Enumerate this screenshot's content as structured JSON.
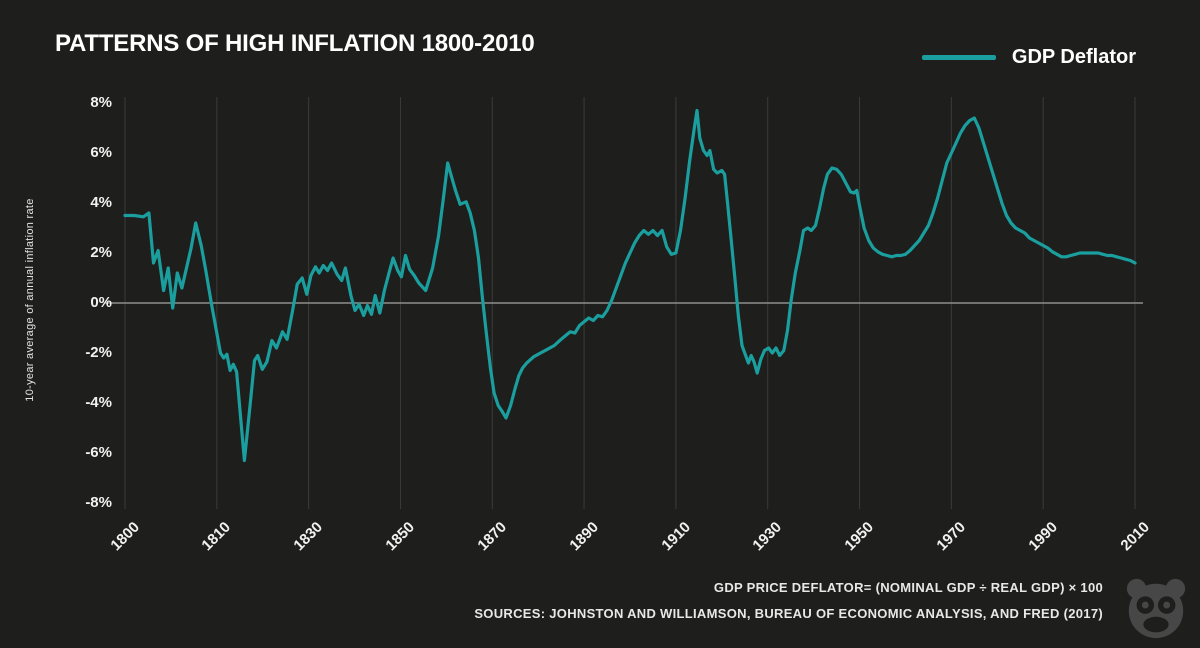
{
  "header": {
    "title": "PATTERNS OF HIGH INFLATION 1800-2010"
  },
  "legend": {
    "label": "GDP Deflator"
  },
  "footer": {
    "formula": "GDP PRICE DEFLATOR= (NOMINAL GDP ÷ REAL GDP) × 100",
    "sources": "SOURCES: JOHNSTON AND WILLIAMSON, BUREAU OF ECONOMIC ANALYSIS, AND FRED (2017)"
  },
  "colors": {
    "background": "#1e1e1d",
    "accent_teal": "#1b9e9e",
    "grid": "#3b3b3b",
    "zero_line": "#8d8d8d",
    "text": "#ffffff"
  },
  "chart_data": {
    "type": "line",
    "title": "PATTERNS OF HIGH INFLATION 1800-2010",
    "xlabel": "",
    "ylabel": "10-year average of annual inflation rate",
    "ylim": {
      "min": -8,
      "max": 8
    },
    "grid": true,
    "legend_position": "top-right",
    "y_ticks": [
      8,
      6,
      4,
      2,
      0,
      -2,
      -4,
      -6,
      -8
    ],
    "y_tick_labels": [
      "8%",
      "6%",
      "4%",
      "2%",
      "0%",
      "-2%",
      "-4%",
      "-6%",
      "-8%"
    ],
    "x_tick_years": [
      1800,
      1810,
      1830,
      1850,
      1870,
      1890,
      1910,
      1930,
      1950,
      1970,
      1990,
      2010
    ],
    "x_tick_labels": [
      "1800",
      "1810",
      "1830",
      "1850",
      "1870",
      "1890",
      "1910",
      "1930",
      "1950",
      "1970",
      "1990",
      "2010"
    ],
    "series": [
      {
        "name": "GDP Deflator",
        "color": "#1b9e9e",
        "points": [
          [
            1800,
            3.5
          ],
          [
            1801,
            3.5
          ],
          [
            1802,
            3.45
          ],
          [
            1802.6,
            3.6
          ],
          [
            1803.1,
            1.6
          ],
          [
            1803.6,
            2.1
          ],
          [
            1804.2,
            0.5
          ],
          [
            1804.7,
            1.4
          ],
          [
            1805.2,
            -0.2
          ],
          [
            1805.7,
            1.2
          ],
          [
            1806.2,
            0.6
          ],
          [
            1806.7,
            1.4
          ],
          [
            1807.2,
            2.2
          ],
          [
            1807.7,
            3.2
          ],
          [
            1808.3,
            2.3
          ],
          [
            1808.8,
            1.3
          ],
          [
            1809.4,
            0
          ],
          [
            1810,
            -1.2
          ],
          [
            1810.8,
            -2.0
          ],
          [
            1811.5,
            -2.2
          ],
          [
            1812.2,
            -2.05
          ],
          [
            1812.9,
            -2.7
          ],
          [
            1813.6,
            -2.45
          ],
          [
            1814.3,
            -2.75
          ],
          [
            1816,
            -6.3
          ],
          [
            1817.3,
            -4.0
          ],
          [
            1818.2,
            -2.3
          ],
          [
            1818.9,
            -2.1
          ],
          [
            1819.9,
            -2.65
          ],
          [
            1820.9,
            -2.35
          ],
          [
            1822,
            -1.5
          ],
          [
            1823,
            -1.8
          ],
          [
            1824.3,
            -1.15
          ],
          [
            1825.3,
            -1.45
          ],
          [
            1826.5,
            -0.3
          ],
          [
            1827.5,
            0.75
          ],
          [
            1828.6,
            1.0
          ],
          [
            1829.6,
            0.35
          ],
          [
            1830.5,
            1.1
          ],
          [
            1831.5,
            1.45
          ],
          [
            1832.3,
            1.2
          ],
          [
            1833.2,
            1.5
          ],
          [
            1834.1,
            1.3
          ],
          [
            1835,
            1.6
          ],
          [
            1836.2,
            1.15
          ],
          [
            1837.2,
            0.9
          ],
          [
            1838,
            1.4
          ],
          [
            1839.2,
            0.3
          ],
          [
            1840.1,
            -0.3
          ],
          [
            1841,
            -0.05
          ],
          [
            1842,
            -0.5
          ],
          [
            1842.8,
            -0.1
          ],
          [
            1843.7,
            -0.45
          ],
          [
            1844.5,
            0.3
          ],
          [
            1845.5,
            -0.4
          ],
          [
            1846.5,
            0.5
          ],
          [
            1847.5,
            1.2
          ],
          [
            1848.4,
            1.8
          ],
          [
            1849.4,
            1.3
          ],
          [
            1850.2,
            1.05
          ],
          [
            1851.1,
            1.9
          ],
          [
            1852,
            1.35
          ],
          [
            1853,
            1.1
          ],
          [
            1854,
            0.8
          ],
          [
            1855.5,
            0.5
          ],
          [
            1857,
            1.4
          ],
          [
            1858.3,
            2.7
          ],
          [
            1859.3,
            4.1
          ],
          [
            1860.3,
            5.6
          ],
          [
            1861.2,
            5.0
          ],
          [
            1862,
            4.5
          ],
          [
            1863,
            3.95
          ],
          [
            1864.3,
            4.05
          ],
          [
            1865.2,
            3.6
          ],
          [
            1866.1,
            2.9
          ],
          [
            1867,
            1.8
          ],
          [
            1867.8,
            0.3
          ],
          [
            1868.7,
            -1.2
          ],
          [
            1869.6,
            -2.6
          ],
          [
            1870.4,
            -3.6
          ],
          [
            1871.3,
            -4.1
          ],
          [
            1872.2,
            -4.35
          ],
          [
            1873,
            -4.6
          ],
          [
            1874,
            -4.1
          ],
          [
            1875,
            -3.4
          ],
          [
            1875.8,
            -2.9
          ],
          [
            1876.6,
            -2.6
          ],
          [
            1877.5,
            -2.4
          ],
          [
            1879,
            -2.15
          ],
          [
            1880.5,
            -2.0
          ],
          [
            1882,
            -1.85
          ],
          [
            1883.5,
            -1.7
          ],
          [
            1885,
            -1.45
          ],
          [
            1886,
            -1.3
          ],
          [
            1887,
            -1.15
          ],
          [
            1888,
            -1.2
          ],
          [
            1889,
            -0.9
          ],
          [
            1890,
            -0.75
          ],
          [
            1891,
            -0.6
          ],
          [
            1892,
            -0.7
          ],
          [
            1893,
            -0.5
          ],
          [
            1894,
            -0.55
          ],
          [
            1895,
            -0.3
          ],
          [
            1896,
            0.1
          ],
          [
            1897,
            0.6
          ],
          [
            1898,
            1.1
          ],
          [
            1899,
            1.6
          ],
          [
            1900,
            2.0
          ],
          [
            1901,
            2.4
          ],
          [
            1902,
            2.7
          ],
          [
            1903,
            2.9
          ],
          [
            1904,
            2.75
          ],
          [
            1905,
            2.9
          ],
          [
            1906,
            2.7
          ],
          [
            1907,
            2.9
          ],
          [
            1908,
            2.25
          ],
          [
            1909,
            1.95
          ],
          [
            1910,
            2.0
          ],
          [
            1911,
            2.9
          ],
          [
            1912,
            4.2
          ],
          [
            1913,
            5.7
          ],
          [
            1914,
            7.0
          ],
          [
            1914.6,
            7.7
          ],
          [
            1915.2,
            6.6
          ],
          [
            1916,
            6.1
          ],
          [
            1916.8,
            5.9
          ],
          [
            1917.4,
            6.1
          ],
          [
            1918.2,
            5.35
          ],
          [
            1919,
            5.2
          ],
          [
            1920,
            5.3
          ],
          [
            1920.6,
            5.15
          ],
          [
            1921.3,
            3.9
          ],
          [
            1922.1,
            2.4
          ],
          [
            1922.9,
            0.9
          ],
          [
            1923.6,
            -0.5
          ],
          [
            1924.4,
            -1.7
          ],
          [
            1925.1,
            -2.05
          ],
          [
            1925.8,
            -2.4
          ],
          [
            1926.4,
            -2.1
          ],
          [
            1927,
            -2.35
          ],
          [
            1927.7,
            -2.8
          ],
          [
            1928.5,
            -2.25
          ],
          [
            1929.3,
            -1.9
          ],
          [
            1930.2,
            -1.8
          ],
          [
            1931,
            -2.0
          ],
          [
            1931.8,
            -1.8
          ],
          [
            1932.6,
            -2.1
          ],
          [
            1933.5,
            -1.9
          ],
          [
            1934.3,
            -1.1
          ],
          [
            1935.1,
            0.1
          ],
          [
            1936,
            1.2
          ],
          [
            1937,
            2.1
          ],
          [
            1937.8,
            2.9
          ],
          [
            1938.7,
            3.0
          ],
          [
            1939.5,
            2.9
          ],
          [
            1940.4,
            3.1
          ],
          [
            1941.3,
            3.8
          ],
          [
            1942.2,
            4.6
          ],
          [
            1943,
            5.15
          ],
          [
            1944,
            5.4
          ],
          [
            1945,
            5.35
          ],
          [
            1946,
            5.15
          ],
          [
            1947,
            4.8
          ],
          [
            1948,
            4.45
          ],
          [
            1948.8,
            4.4
          ],
          [
            1949.4,
            4.5
          ],
          [
            1950,
            3.9
          ],
          [
            1951,
            3.0
          ],
          [
            1952,
            2.5
          ],
          [
            1953,
            2.2
          ],
          [
            1954,
            2.05
          ],
          [
            1955,
            1.95
          ],
          [
            1956,
            1.9
          ],
          [
            1957,
            1.85
          ],
          [
            1958,
            1.9
          ],
          [
            1959,
            1.9
          ],
          [
            1960,
            1.95
          ],
          [
            1961,
            2.1
          ],
          [
            1962,
            2.3
          ],
          [
            1963,
            2.5
          ],
          [
            1964,
            2.8
          ],
          [
            1965,
            3.1
          ],
          [
            1966,
            3.6
          ],
          [
            1967,
            4.2
          ],
          [
            1968,
            4.9
          ],
          [
            1969,
            5.6
          ],
          [
            1970,
            6.0
          ],
          [
            1971,
            6.4
          ],
          [
            1972,
            6.8
          ],
          [
            1973,
            7.1
          ],
          [
            1974,
            7.3
          ],
          [
            1975,
            7.4
          ],
          [
            1976,
            7.0
          ],
          [
            1977,
            6.4
          ],
          [
            1978,
            5.8
          ],
          [
            1979,
            5.2
          ],
          [
            1980,
            4.6
          ],
          [
            1981,
            4.0
          ],
          [
            1982,
            3.5
          ],
          [
            1983,
            3.2
          ],
          [
            1984,
            3.0
          ],
          [
            1985,
            2.9
          ],
          [
            1986,
            2.8
          ],
          [
            1987,
            2.6
          ],
          [
            1988,
            2.5
          ],
          [
            1989,
            2.4
          ],
          [
            1990,
            2.3
          ],
          [
            1991,
            2.2
          ],
          [
            1992,
            2.05
          ],
          [
            1993,
            1.95
          ],
          [
            1994,
            1.85
          ],
          [
            1995,
            1.85
          ],
          [
            1996,
            1.9
          ],
          [
            1997,
            1.95
          ],
          [
            1998,
            2.0
          ],
          [
            1999,
            2.0
          ],
          [
            2000,
            2.0
          ],
          [
            2001,
            2.0
          ],
          [
            2002,
            2.0
          ],
          [
            2003,
            1.95
          ],
          [
            2004,
            1.9
          ],
          [
            2005,
            1.9
          ],
          [
            2006,
            1.85
          ],
          [
            2007,
            1.8
          ],
          [
            2008,
            1.75
          ],
          [
            2009,
            1.7
          ],
          [
            2010,
            1.6
          ]
        ]
      }
    ]
  }
}
